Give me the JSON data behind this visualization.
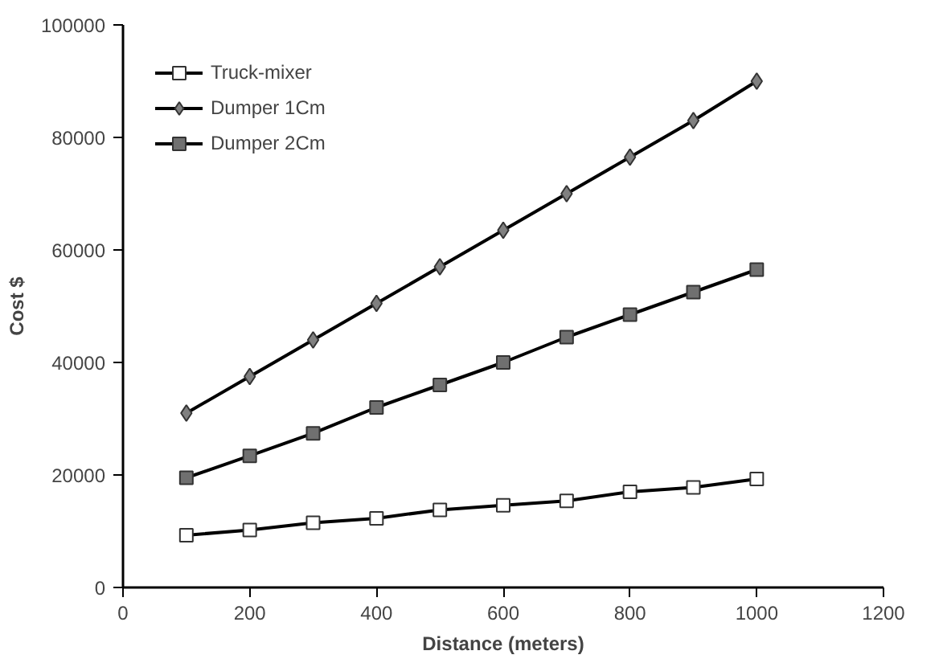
{
  "chart_data": {
    "type": "line",
    "xlabel": "Distance (meters)",
    "ylabel": "Cost $",
    "x": [
      100,
      200,
      300,
      400,
      500,
      600,
      700,
      800,
      900,
      1000
    ],
    "series": [
      {
        "name": "Truck-mixer",
        "color": "#ffffff",
        "marker": "square",
        "values": [
          9300,
          10200,
          11500,
          12300,
          13800,
          14600,
          15400,
          17000,
          17800,
          19300
        ]
      },
      {
        "name": "Dumper 1Cm",
        "color": "#808080",
        "marker": "diamond",
        "values": [
          31000,
          37500,
          44000,
          50500,
          57000,
          63500,
          70000,
          76500,
          83000,
          90000
        ]
      },
      {
        "name": "Dumper 2Cm",
        "color": "#707070",
        "marker": "square",
        "values": [
          19500,
          23400,
          27400,
          32000,
          36000,
          40000,
          44500,
          48500,
          52500,
          56500
        ]
      }
    ],
    "xlim": [
      0,
      1200
    ],
    "xticks": [
      0,
      200,
      400,
      600,
      800,
      1000,
      1200
    ],
    "ylim": [
      0,
      100000
    ],
    "yticks": [
      0,
      20000,
      40000,
      60000,
      80000,
      100000
    ],
    "grid": false,
    "legend": "top left",
    "line_style": "solid"
  }
}
